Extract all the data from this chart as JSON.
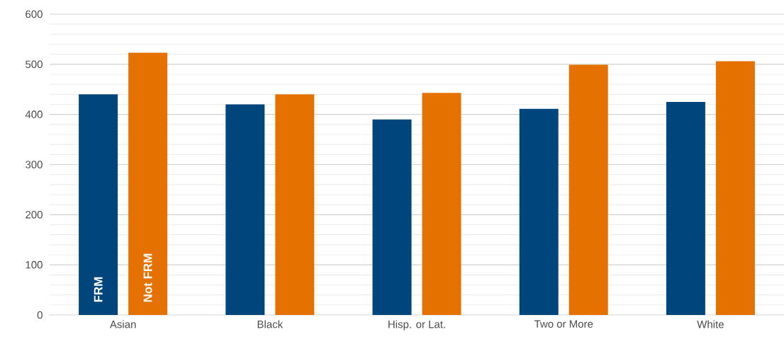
{
  "chart_data": {
    "type": "bar",
    "categories": [
      "Asian",
      "Black",
      "Hisp. or Lat.",
      "Two or More",
      "White"
    ],
    "series": [
      {
        "name": "FRM",
        "color": "#00457c",
        "values": [
          440,
          420,
          390,
          411,
          425
        ]
      },
      {
        "name": "Not FRM",
        "color": "#e57200",
        "values": [
          523,
          440,
          443,
          499,
          506
        ]
      }
    ],
    "ylim": [
      0,
      600
    ],
    "yticks": [
      0,
      {
        "value": 20,
        "label": null
      },
      {
        "value": 40,
        "label": null
      },
      {
        "value": 60,
        "label": null
      },
      {
        "value": 80,
        "label": null
      },
      100,
      {
        "value": 120,
        "label": null
      },
      {
        "value": 140,
        "label": null
      },
      {
        "value": 160,
        "label": null
      },
      {
        "value": 180,
        "label": null
      },
      200,
      {
        "value": 220,
        "label": null
      },
      {
        "value": 240,
        "label": null
      },
      {
        "value": 260,
        "label": null
      },
      {
        "value": 280,
        "label": null
      },
      300,
      {
        "value": 320,
        "label": null
      },
      {
        "value": 340,
        "label": null
      },
      {
        "value": 360,
        "label": null
      },
      {
        "value": 380,
        "label": null
      },
      400,
      {
        "value": 420,
        "label": null
      },
      {
        "value": 440,
        "label": null
      },
      {
        "value": 460,
        "label": null
      },
      {
        "value": 480,
        "label": null
      },
      500,
      {
        "value": 520,
        "label": null
      },
      {
        "value": 540,
        "label": null
      },
      {
        "value": 560,
        "label": null
      },
      {
        "value": 580,
        "label": null
      },
      600
    ],
    "grid": "y"
  }
}
